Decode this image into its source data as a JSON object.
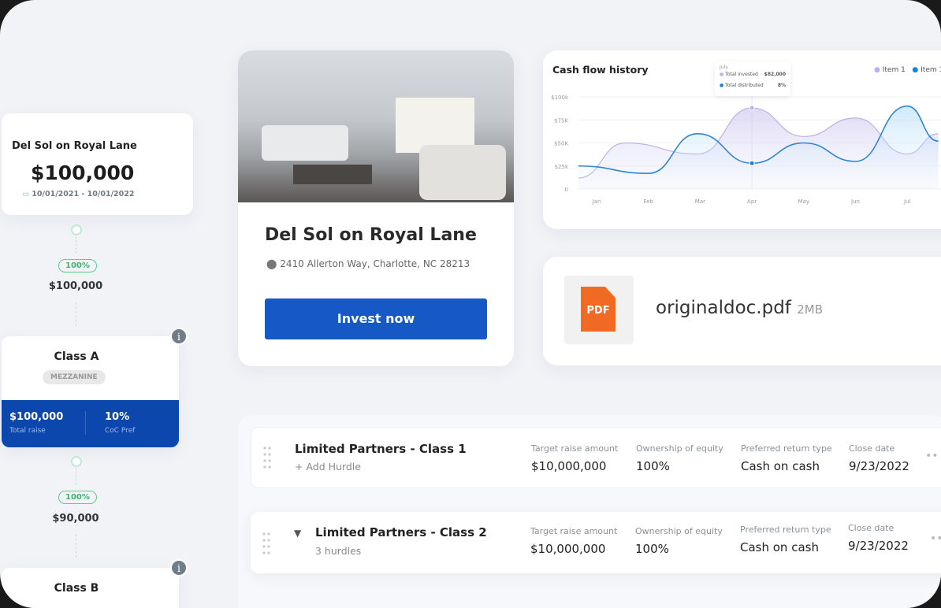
{
  "summary": {
    "title": "Del Sol on Royal Lane",
    "amount": "$100,000",
    "dates": "10/01/2021 - 10/01/2022"
  },
  "flow": [
    {
      "pct": "100%",
      "amount": "$100,000"
    },
    {
      "pct": "100%",
      "amount": "$90,000"
    }
  ],
  "classA": {
    "title": "Class A",
    "tag": "MEZZANINE",
    "raise": "$100,000",
    "raise_label": "Total raise",
    "pref": "10%",
    "pref_label": "CoC Pref"
  },
  "classB": {
    "title": "Class B"
  },
  "property": {
    "title": "Del Sol on Royal Lane",
    "address": "2410 Allerton Way, Charlotte, NC 28213",
    "cta": "Invest now"
  },
  "file": {
    "icon_label": "PDF",
    "name": "originaldoc.pdf",
    "size": "2MB"
  },
  "chart_data": {
    "type": "area",
    "title": "Cash flow history",
    "categories": [
      "Jan",
      "Feb",
      "Mar",
      "Apr",
      "May",
      "Jun",
      "Jul"
    ],
    "yticks": [
      "0",
      "$25k",
      "$50K",
      "$75K",
      "$100k"
    ],
    "ylim": [
      0,
      100000
    ],
    "legend": [
      "Item 1",
      "Item 1"
    ],
    "legend_placement": "top-right",
    "series": [
      {
        "name": "Item 1",
        "color": "#b9b2e6",
        "points": [
          [
            -0.35,
            12000
          ],
          [
            0.55,
            50000
          ],
          [
            1.95,
            38000
          ],
          [
            3,
            88000
          ],
          [
            4,
            57000
          ],
          [
            5,
            77000
          ],
          [
            6,
            38000
          ],
          [
            6.6,
            60000
          ]
        ]
      },
      {
        "name": "Item 1",
        "color": "#2f86d0",
        "points": [
          [
            -0.35,
            25000
          ],
          [
            1,
            17000
          ],
          [
            1.95,
            60000
          ],
          [
            3,
            28000
          ],
          [
            4,
            50000
          ],
          [
            5,
            30000
          ],
          [
            6,
            90000
          ],
          [
            6.6,
            52000
          ]
        ]
      }
    ],
    "tooltip": {
      "month": "July",
      "rows": [
        {
          "label": "Total invested",
          "value": "$82,000"
        },
        {
          "label": "Total distributed",
          "value": "8%"
        }
      ]
    }
  },
  "partners": [
    {
      "name": "Limited Partners - Class 1",
      "sub": "+ Add Hurdle",
      "target": "$10,000,000",
      "equity": "100%",
      "ret": "Cash on cash",
      "close": "9/23/2022"
    },
    {
      "name": "Limited Partners - Class 2",
      "sub": "3 hurdles",
      "target": "$10,000,000",
      "equity": "100%",
      "ret": "Cash on cash",
      "close": "9/23/2022"
    }
  ],
  "partner_labels": {
    "target": "Target raise amount",
    "equity": "Ownership of equity",
    "ret": "Preferred return type",
    "close": "Close date"
  }
}
